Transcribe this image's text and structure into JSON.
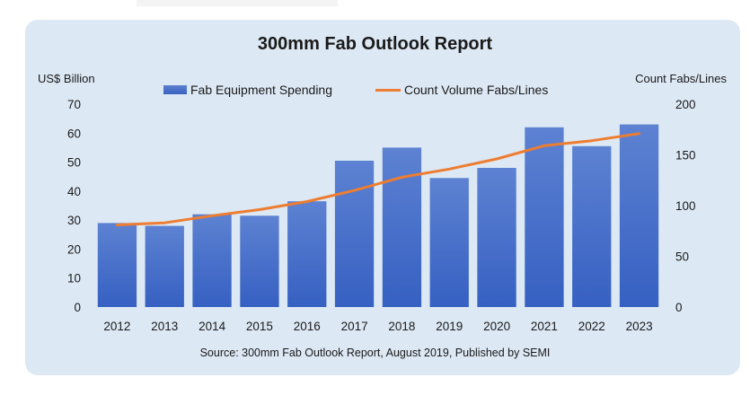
{
  "chart_data": {
    "type": "bar",
    "title": "300mm Fab Outlook Report",
    "categories": [
      "2012",
      "2013",
      "2014",
      "2015",
      "2016",
      "2017",
      "2018",
      "2019",
      "2020",
      "2021",
      "2022",
      "2023"
    ],
    "series": [
      {
        "name": "Fab Equipment Spending",
        "type": "bar",
        "axis": "left",
        "color": "#4472c4",
        "values": [
          29,
          28,
          32,
          31.5,
          36.5,
          50.5,
          55,
          44.5,
          48,
          62,
          55.5,
          63
        ]
      },
      {
        "name": "Count Volume Fabs/Lines",
        "type": "line",
        "axis": "right",
        "color": "#ed7d31",
        "values": [
          81,
          83,
          90,
          96,
          104,
          115,
          128,
          136,
          146,
          159,
          164,
          171
        ]
      }
    ],
    "ylabel": "US$ Billion",
    "y2label": "Count Fabs/Lines",
    "ylim": [
      0,
      70
    ],
    "y2lim": [
      0,
      200
    ],
    "yticks": [
      "0",
      "10",
      "20",
      "30",
      "40",
      "50",
      "60",
      "70"
    ],
    "y2ticks": [
      "0",
      "50",
      "100",
      "150",
      "200"
    ],
    "grid": false,
    "legend_position": "top",
    "source": "Source: 300mm Fab Outlook Report, August 2019, Published by SEMI"
  }
}
